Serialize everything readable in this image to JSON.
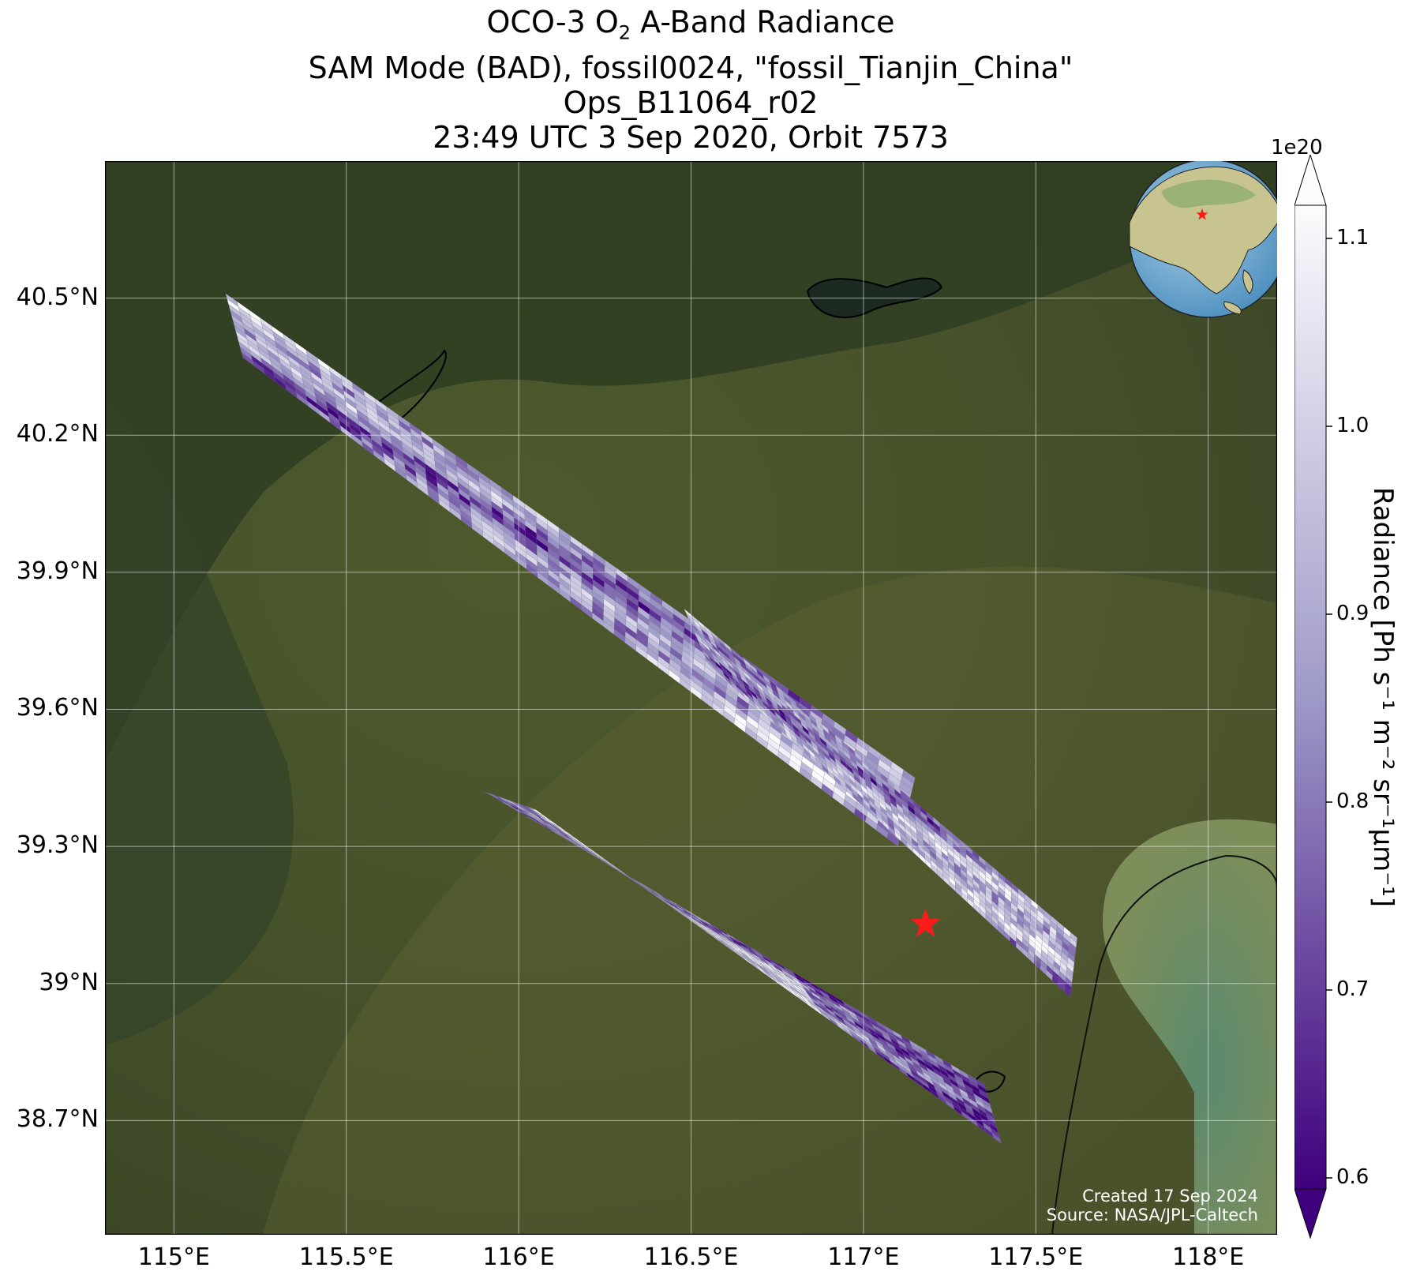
{
  "title": {
    "line1_pre": "OCO-3 O",
    "line1_sub": "2",
    "line1_post": " A-Band Radiance",
    "line2": "SAM Mode (BAD), fossil0024, \"fossil_Tianjin_China\"",
    "line3": "Ops_B11064_r02",
    "line4": "23:49 UTC 3 Sep 2020, Orbit 7573"
  },
  "map": {
    "lon_range": [
      114.8,
      118.2
    ],
    "lat_range": [
      38.45,
      40.8
    ],
    "lon_ticks": [
      {
        "value": 115.0,
        "label": "115°E"
      },
      {
        "value": 115.5,
        "label": "115.5°E"
      },
      {
        "value": 116.0,
        "label": "116°E"
      },
      {
        "value": 116.5,
        "label": "116.5°E"
      },
      {
        "value": 117.0,
        "label": "117°E"
      },
      {
        "value": 117.5,
        "label": "117.5°E"
      },
      {
        "value": 118.0,
        "label": "118°E"
      }
    ],
    "lat_ticks": [
      {
        "value": 40.5,
        "label": "40.5°N"
      },
      {
        "value": 40.2,
        "label": "40.2°N"
      },
      {
        "value": 39.9,
        "label": "39.9°N"
      },
      {
        "value": 39.6,
        "label": "39.6°N"
      },
      {
        "value": 39.3,
        "label": "39.3°N"
      },
      {
        "value": 39.0,
        "label": "39°N"
      },
      {
        "value": 38.7,
        "label": "38.7°N"
      }
    ],
    "target": {
      "lon": 117.18,
      "lat": 39.13,
      "marker": "red-star",
      "color": "#ff1a1a"
    },
    "inset_globe": {
      "center_lon": 117.2,
      "center_lat": 39.1,
      "marker": "red-star"
    },
    "background": "satellite-imagery",
    "swaths": [
      {
        "name": "northwest-swath",
        "corners": [
          [
            115.15,
            40.51
          ],
          [
            115.2,
            40.37
          ],
          [
            117.1,
            39.3
          ],
          [
            117.15,
            39.45
          ]
        ]
      },
      {
        "name": "east-swath",
        "corners": [
          [
            116.48,
            39.82
          ],
          [
            116.55,
            39.7
          ],
          [
            117.6,
            38.97
          ],
          [
            117.62,
            39.1
          ]
        ]
      },
      {
        "name": "south-swath",
        "corners": [
          [
            115.9,
            39.42
          ],
          [
            116.05,
            39.38
          ],
          [
            117.4,
            38.65
          ],
          [
            117.35,
            38.78
          ]
        ]
      }
    ]
  },
  "colorbar": {
    "label": "Radiance [Ph s⁻¹ m⁻² sr⁻¹μm⁻¹]",
    "multiplier": "1e20",
    "min": 0.6,
    "max": 1.1,
    "extend": "both",
    "ticks": [
      "0.6",
      "0.7",
      "0.8",
      "0.9",
      "1.0",
      "1.1"
    ],
    "colormap": "Purples_r",
    "color_low": "#3f007d",
    "color_mid": "#9e9ac8",
    "color_high": "#fcfbfd"
  },
  "credits": {
    "created": "Created 17 Sep 2024",
    "source": "Source: NASA/JPL-Caltech"
  }
}
